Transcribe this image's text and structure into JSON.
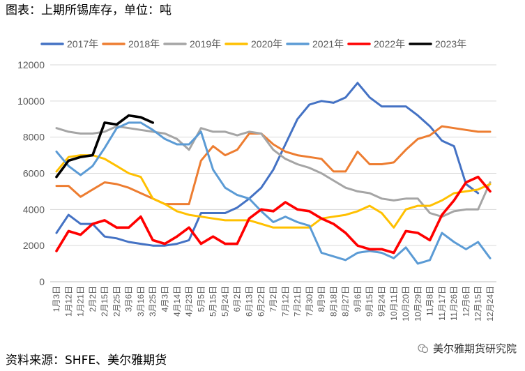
{
  "title": "图表：上期所锡库存，单位：吨",
  "source": "资料来源：SHFE、美尔雅期货",
  "watermark": "美尔雅期货研究院",
  "watermark_icon": "wechat-icon",
  "chart_data": {
    "type": "line",
    "title": "",
    "xlabel": "",
    "ylabel": "",
    "ylim": [
      0,
      12000
    ],
    "yticks": [
      0,
      2000,
      4000,
      6000,
      8000,
      10000,
      12000
    ],
    "grid": true,
    "legend_position": "top",
    "categories": [
      "1月3日",
      "1月12日",
      "1月21日",
      "2月2日",
      "2月15日",
      "2月25日",
      "3月6日",
      "3月16日",
      "3月25日",
      "4月3日",
      "4月14日",
      "4月23日",
      "5月5日",
      "5月15日",
      "5月24日",
      "6月2日",
      "6月13日",
      "6月22日",
      "7月2日",
      "7月12日",
      "7月21日",
      "7月30日",
      "8月9日",
      "8月18日",
      "8月27日",
      "9月6日",
      "9月15日",
      "9月24日",
      "10月11日",
      "10月20日",
      "10月29日",
      "11月8日",
      "11月17日",
      "11月26日",
      "12月6日",
      "12月15日",
      "12月24日"
    ],
    "series": [
      {
        "name": "2017年",
        "color": "#4472C4",
        "values": [
          2700,
          3700,
          3200,
          3200,
          2500,
          2400,
          2200,
          2100,
          2000,
          2000,
          2100,
          2300,
          3800,
          3800,
          3800,
          4100,
          4600,
          5200,
          6200,
          7600,
          9000,
          9800,
          10000,
          9900,
          10200,
          11000,
          10200,
          9700,
          9700,
          9700,
          9200,
          8600,
          7800,
          7500,
          5400,
          4900,
          null
        ]
      },
      {
        "name": "2018年",
        "color": "#ED7D31",
        "values": [
          5300,
          5300,
          4700,
          5100,
          5500,
          5400,
          5200,
          4900,
          4600,
          4300,
          4300,
          4300,
          6700,
          7500,
          7000,
          7300,
          8200,
          8200,
          7600,
          7200,
          7000,
          6900,
          6800,
          6100,
          6100,
          7200,
          6500,
          6500,
          6600,
          7300,
          7900,
          8100,
          8600,
          8500,
          8400,
          8300,
          8300
        ]
      },
      {
        "name": "2019年",
        "color": "#A5A5A5",
        "values": [
          8500,
          8300,
          8200,
          8200,
          8300,
          8600,
          8500,
          8400,
          8300,
          8200,
          7900,
          7300,
          8500,
          8300,
          8300,
          8100,
          8300,
          8200,
          7300,
          6800,
          6500,
          6300,
          6000,
          5600,
          5200,
          5000,
          4900,
          4600,
          4500,
          4600,
          4600,
          3800,
          3600,
          3900,
          4000,
          4000,
          5500
        ]
      },
      {
        "name": "2020年",
        "color": "#FFC000",
        "values": [
          6100,
          6900,
          7000,
          7000,
          6800,
          6400,
          6000,
          5800,
          4600,
          4300,
          3900,
          3700,
          3600,
          3500,
          3400,
          3400,
          3400,
          3200,
          3000,
          3000,
          3000,
          3000,
          3500,
          3600,
          3700,
          3900,
          4200,
          3800,
          3000,
          4000,
          4200,
          4200,
          4500,
          4900,
          5000,
          5100,
          5400
        ]
      },
      {
        "name": "2021年",
        "color": "#5B9BD5",
        "values": [
          7200,
          6400,
          5900,
          6400,
          7400,
          8500,
          8800,
          8800,
          8400,
          7900,
          7600,
          7600,
          8300,
          6200,
          5200,
          4800,
          4600,
          3900,
          3300,
          3600,
          3300,
          3100,
          1600,
          1400,
          1200,
          1600,
          1700,
          1600,
          1300,
          1900,
          1000,
          1200,
          2700,
          2200,
          1800,
          2200,
          1300
        ]
      },
      {
        "name": "2022年",
        "color": "#FF0000",
        "values": [
          1700,
          2800,
          2600,
          3200,
          3400,
          3000,
          3000,
          3600,
          2300,
          2100,
          2500,
          3000,
          2100,
          2500,
          2100,
          2100,
          3500,
          4000,
          3900,
          4400,
          4000,
          3900,
          3500,
          3200,
          2700,
          2000,
          1800,
          1800,
          1600,
          2800,
          2700,
          2300,
          3700,
          4500,
          5500,
          5800,
          5000
        ]
      },
      {
        "name": "2023年",
        "color": "#000000",
        "values": [
          5800,
          6700,
          6900,
          7000,
          8800,
          8700,
          9200,
          9100,
          8800,
          null,
          null,
          null,
          null,
          null,
          null,
          null,
          null,
          null,
          null,
          null,
          null,
          null,
          null,
          null,
          null,
          null,
          null,
          null,
          null,
          null,
          null,
          null,
          null,
          null,
          null,
          null,
          null
        ]
      }
    ]
  }
}
